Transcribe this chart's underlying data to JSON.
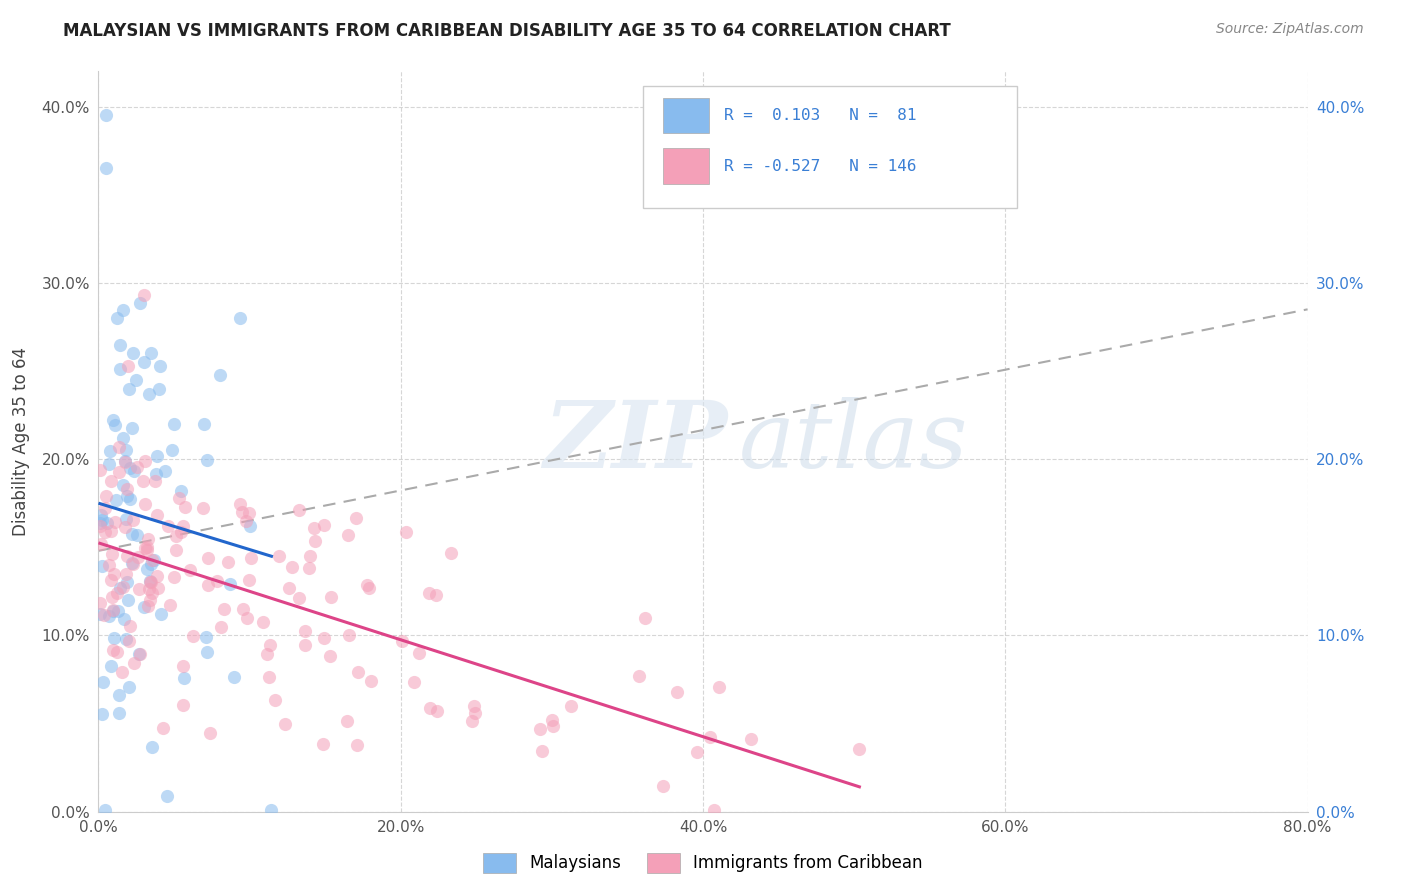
{
  "title": "MALAYSIAN VS IMMIGRANTS FROM CARIBBEAN DISABILITY AGE 35 TO 64 CORRELATION CHART",
  "source": "Source: ZipAtlas.com",
  "ylabel": "Disability Age 35 to 64",
  "xlim": [
    0.0,
    0.8
  ],
  "ylim": [
    0.0,
    0.42
  ],
  "malaysian_color": "#88bbee",
  "caribbean_color": "#f4a0b8",
  "trend_malaysian_color": "#2266cc",
  "trend_caribbean_color": "#dd4488",
  "trend_dashed_color": "#aaaaaa",
  "R_malaysian": 0.103,
  "N_malaysian": 81,
  "R_caribbean": -0.527,
  "N_caribbean": 146,
  "watermark_zip": "ZIP",
  "watermark_atlas": "atlas",
  "legend_label_malaysian": "Malaysians",
  "legend_label_caribbean": "Immigrants from Caribbean",
  "background_color": "#ffffff",
  "xtick_vals": [
    0.0,
    0.2,
    0.4,
    0.6,
    0.8
  ],
  "ytick_vals": [
    0.0,
    0.1,
    0.2,
    0.3,
    0.4
  ],
  "marker_size": 90,
  "marker_alpha": 0.55,
  "title_fontsize": 12,
  "source_fontsize": 10,
  "tick_fontsize": 11,
  "legend_fontsize": 12
}
